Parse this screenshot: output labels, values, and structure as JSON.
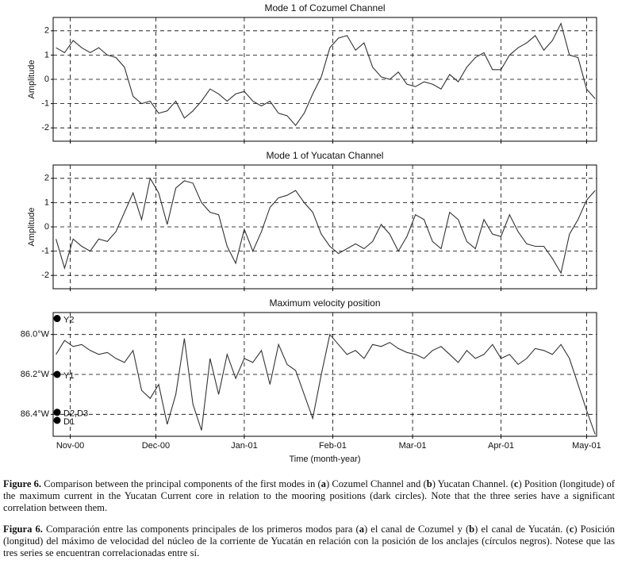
{
  "chart_data": [
    {
      "type": "line",
      "title": "Mode 1 of Cozumel Channel",
      "ylabel": "Amplitude",
      "color": "#333",
      "grid": true,
      "x": [
        -5,
        -2,
        1,
        4,
        7,
        10,
        13,
        16,
        19,
        22,
        25,
        28,
        31,
        34,
        37,
        40,
        43,
        46,
        49,
        52,
        55,
        58,
        61,
        64,
        67,
        70,
        73,
        76,
        79,
        82,
        85,
        88,
        91,
        94,
        97,
        100,
        103,
        106,
        109,
        112,
        115,
        118,
        121,
        124,
        127,
        130,
        133,
        136,
        139,
        142,
        145,
        148,
        151,
        154,
        157,
        160,
        163,
        166,
        169,
        172,
        175,
        178,
        181,
        184
      ],
      "values": [
        1.3,
        1.1,
        1.6,
        1.3,
        1.1,
        1.3,
        1.0,
        0.9,
        0.5,
        -0.7,
        -1.0,
        -0.9,
        -1.4,
        -1.3,
        -0.9,
        -1.6,
        -1.3,
        -0.9,
        -0.4,
        -0.6,
        -0.9,
        -0.6,
        -0.5,
        -0.9,
        -1.1,
        -0.9,
        -1.4,
        -1.5,
        -1.9,
        -1.4,
        -0.6,
        0.1,
        1.3,
        1.7,
        1.8,
        1.2,
        1.5,
        0.5,
        0.1,
        0.0,
        0.3,
        -0.2,
        -0.3,
        -0.1,
        -0.2,
        -0.4,
        0.2,
        -0.1,
        0.5,
        0.9,
        1.1,
        0.4,
        0.4,
        1.0,
        1.3,
        1.5,
        1.8,
        1.2,
        1.6,
        2.3,
        1.0,
        0.9,
        -0.4,
        -0.8
      ],
      "xlim": [
        -6,
        184.5
      ],
      "xticks": [
        0,
        30,
        61,
        92,
        120,
        151,
        181
      ],
      "ylim": [
        -2.55,
        2.55
      ],
      "yticks": [
        -2,
        -1,
        0,
        1,
        2
      ]
    },
    {
      "type": "line",
      "title": "Mode 1 of Yucatan Channel",
      "ylabel": "Amplitude",
      "color": "#333",
      "grid": true,
      "x": [
        -5,
        -2,
        1,
        4,
        7,
        10,
        13,
        16,
        19,
        22,
        25,
        28,
        31,
        34,
        37,
        40,
        43,
        46,
        49,
        52,
        55,
        58,
        61,
        64,
        67,
        70,
        73,
        76,
        79,
        82,
        85,
        88,
        91,
        94,
        97,
        100,
        103,
        106,
        109,
        112,
        115,
        118,
        121,
        124,
        127,
        130,
        133,
        136,
        139,
        142,
        145,
        148,
        151,
        154,
        157,
        160,
        163,
        166,
        169,
        172,
        175,
        178,
        181,
        184
      ],
      "values": [
        -0.5,
        -1.7,
        -0.5,
        -0.8,
        -1.0,
        -0.5,
        -0.6,
        -0.2,
        0.6,
        1.4,
        0.3,
        2.0,
        1.4,
        0.1,
        1.6,
        1.9,
        1.8,
        1.0,
        0.6,
        0.5,
        -0.8,
        -1.5,
        -0.1,
        -1.0,
        -0.2,
        0.8,
        1.2,
        1.3,
        1.5,
        1.0,
        0.6,
        -0.3,
        -0.8,
        -1.1,
        -0.9,
        -0.7,
        -0.9,
        -0.6,
        0.1,
        -0.3,
        -1.0,
        -0.4,
        0.5,
        0.3,
        -0.6,
        -0.9,
        0.6,
        0.3,
        -0.6,
        -0.9,
        0.3,
        -0.3,
        -0.4,
        0.5,
        -0.2,
        -0.7,
        -0.8,
        -0.8,
        -1.3,
        -1.9,
        -0.3,
        0.3,
        1.1,
        1.5
      ],
      "xlim": [
        -6,
        184.5
      ],
      "xticks": [
        0,
        30,
        61,
        92,
        120,
        151,
        181
      ],
      "ylim": [
        -2.55,
        2.55
      ],
      "yticks": [
        -2,
        -1,
        0,
        1,
        2
      ]
    },
    {
      "type": "line",
      "title": "Maximum velocity position",
      "xlabel": "Time (month-year)",
      "color": "#333",
      "grid": true,
      "y_inverted": true,
      "x": [
        -5,
        -2,
        1,
        4,
        7,
        10,
        13,
        16,
        19,
        22,
        25,
        28,
        31,
        34,
        37,
        40,
        43,
        46,
        49,
        52,
        55,
        58,
        61,
        64,
        67,
        70,
        73,
        76,
        79,
        82,
        85,
        88,
        91,
        94,
        97,
        100,
        103,
        106,
        109,
        112,
        115,
        118,
        121,
        124,
        127,
        130,
        133,
        136,
        139,
        142,
        145,
        148,
        151,
        154,
        157,
        160,
        163,
        166,
        169,
        172,
        175,
        178,
        181,
        184
      ],
      "values": [
        86.1,
        86.03,
        86.06,
        86.05,
        86.08,
        86.1,
        86.09,
        86.12,
        86.14,
        86.08,
        86.28,
        86.32,
        86.25,
        86.45,
        86.3,
        86.02,
        86.35,
        86.48,
        86.12,
        86.3,
        86.1,
        86.22,
        86.12,
        86.14,
        86.08,
        86.25,
        86.05,
        86.15,
        86.18,
        86.3,
        86.42,
        86.2,
        86.0,
        86.05,
        86.1,
        86.08,
        86.12,
        86.05,
        86.06,
        86.04,
        86.07,
        86.09,
        86.1,
        86.12,
        86.08,
        86.06,
        86.1,
        86.14,
        86.08,
        86.12,
        86.1,
        86.05,
        86.12,
        86.1,
        86.15,
        86.12,
        86.07,
        86.08,
        86.1,
        86.05,
        86.12,
        86.25,
        86.38,
        86.5
      ],
      "xlim": [
        -6,
        184.5
      ],
      "xticks": [
        {
          "value": 0,
          "label": "Nov-00"
        },
        {
          "value": 30,
          "label": "Dec-00"
        },
        {
          "value": 61,
          "label": "Jan-01"
        },
        {
          "value": 92,
          "label": "Feb-01"
        },
        {
          "value": 120,
          "label": "Mar-01"
        },
        {
          "value": 151,
          "label": "Apr-01"
        },
        {
          "value": 181,
          "label": "May-01"
        }
      ],
      "ylim": [
        85.89,
        86.51
      ],
      "yticks": [
        {
          "value": 86.0,
          "label": "86.0°W"
        },
        {
          "value": 86.2,
          "label": "86.2°W"
        },
        {
          "value": 86.4,
          "label": "86.4°W"
        }
      ],
      "moorings": [
        {
          "name": "Y2",
          "value": 85.92
        },
        {
          "name": "Y1",
          "value": 86.2
        },
        {
          "name": "D2,D3",
          "value": 86.39
        },
        {
          "name": "D1",
          "value": 86.43
        }
      ]
    }
  ],
  "captions": [
    [
      "Figure 6.",
      " Comparison between the principal components of the first modes in (",
      "a",
      ") Cozumel Channel and (",
      "b",
      ") Yucatan Channel. (",
      "c",
      ") Position (longitude) of the maximum current in the Yucatan Current core in relation to the mooring positions (dark circles). Note that the three series have a significant correlation between them."
    ],
    [
      "Figura 6.",
      " Comparación entre las components principales de los primeros modos para (",
      "a",
      ") el canal de Cozumel y (",
      "b",
      ") el canal de Yucatán. (",
      "c",
      ") Posición (longitud) del máximo de velocidad del núcleo de la corriente de Yucatán en relación con la posición de los anclajes (círculos negros). Notese que las tres series se encuentran correlacionadas entre sí."
    ]
  ]
}
